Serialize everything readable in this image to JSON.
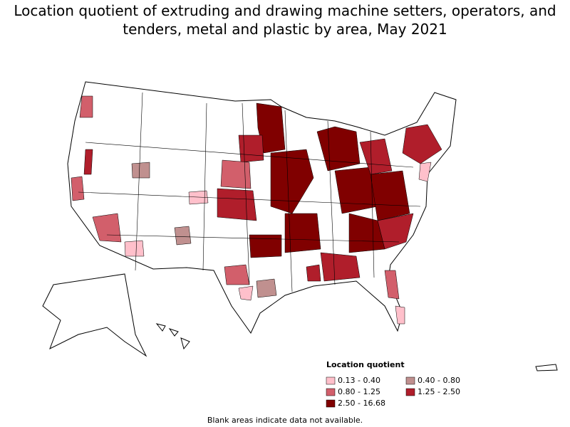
{
  "title": "Location quotient of extruding and drawing machine setters, operators, and tenders, metal and plastic by area, May 2021",
  "legend": {
    "title": "Location quotient",
    "items": [
      {
        "label": "0.13 - 0.40",
        "color": "#ffc0cb"
      },
      {
        "label": "0.40 - 0.80",
        "color": "#c0908f"
      },
      {
        "label": "0.80 - 1.25",
        "color": "#d25f6b"
      },
      {
        "label": "1.25 - 2.50",
        "color": "#b01e2b"
      },
      {
        "label": "2.50 - 16.68",
        "color": "#800000"
      }
    ]
  },
  "note": "Blank areas indicate data not available."
}
